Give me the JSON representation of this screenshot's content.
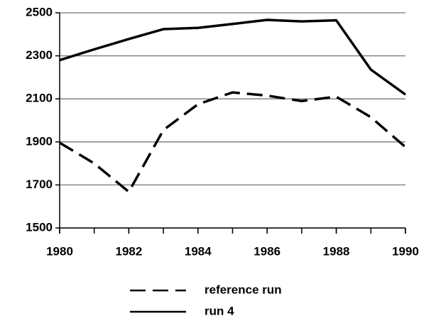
{
  "chart_data": {
    "type": "line",
    "x": [
      1980,
      1981,
      1982,
      1983,
      1984,
      1985,
      1986,
      1987,
      1988,
      1989,
      1990
    ],
    "series": [
      {
        "name": "reference run",
        "color": "#000000",
        "style": "dashed",
        "values": [
          1896,
          1800,
          1668,
          1955,
          2075,
          2130,
          2115,
          2090,
          2110,
          2015,
          1876
        ]
      },
      {
        "name": "run 4",
        "color": "#000000",
        "style": "solid",
        "values": [
          2280,
          2330,
          2378,
          2424,
          2430,
          2448,
          2467,
          2460,
          2465,
          2236,
          2120
        ]
      }
    ],
    "xlim": [
      1980,
      1990
    ],
    "xticks": [
      1980,
      1982,
      1984,
      1986,
      1988,
      1990
    ],
    "ylim": [
      1500,
      2500
    ],
    "yticks": [
      1500,
      1700,
      1900,
      2100,
      2300,
      2500
    ],
    "grid": true,
    "legend": "bottom"
  }
}
